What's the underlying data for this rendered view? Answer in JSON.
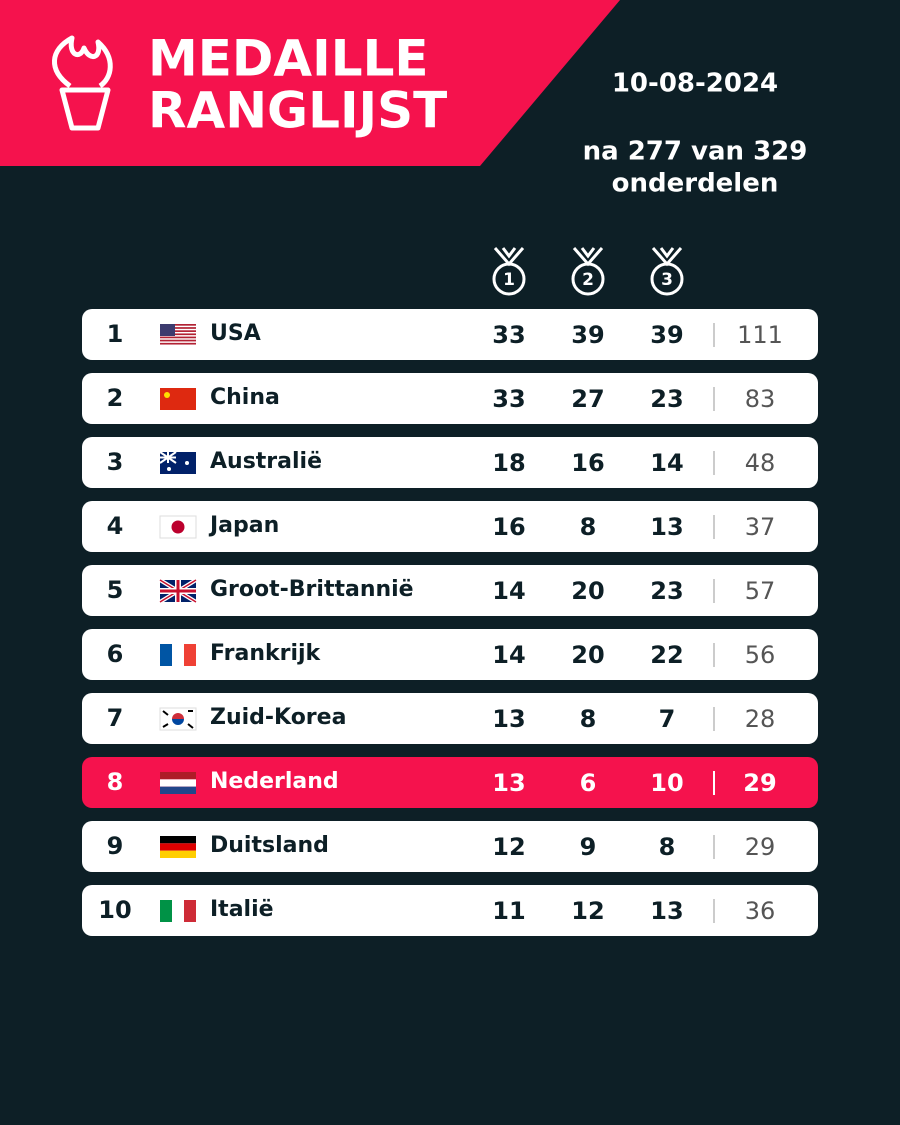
{
  "header": {
    "title_lines": [
      "MEDAILLE",
      "RANGLIJST"
    ],
    "date": "10-08-2024",
    "subtitle_lines": [
      "na 277 van 329",
      "onderdelen"
    ]
  },
  "medal_headers": [
    1,
    2,
    3
  ],
  "table": {
    "rows": [
      {
        "rank": 1,
        "country": "USA",
        "gold": 33,
        "silver": 39,
        "bronze": 39,
        "total": 111
      },
      {
        "rank": 2,
        "country": "China",
        "gold": 33,
        "silver": 27,
        "bronze": 23,
        "total": 83
      },
      {
        "rank": 3,
        "country": "Australië",
        "gold": 18,
        "silver": 16,
        "bronze": 14,
        "total": 48
      },
      {
        "rank": 4,
        "country": "Japan",
        "gold": 16,
        "silver": 8,
        "bronze": 13,
        "total": 37
      },
      {
        "rank": 5,
        "country": "Groot-Brittannië",
        "gold": 14,
        "silver": 20,
        "bronze": 23,
        "total": 57
      },
      {
        "rank": 6,
        "country": "Frankrijk",
        "gold": 14,
        "silver": 20,
        "bronze": 22,
        "total": 56
      },
      {
        "rank": 7,
        "country": "Zuid-Korea",
        "gold": 13,
        "silver": 8,
        "bronze": 7,
        "total": 28
      },
      {
        "rank": 8,
        "country": "Nederland",
        "gold": 13,
        "silver": 6,
        "bronze": 10,
        "total": 29,
        "highlighted": true
      },
      {
        "rank": 9,
        "country": "Duitsland",
        "gold": 12,
        "silver": 9,
        "bronze": 8,
        "total": 29
      },
      {
        "rank": 10,
        "country": "Italië",
        "gold": 11,
        "silver": 12,
        "bronze": 13,
        "total": 36
      }
    ]
  }
}
